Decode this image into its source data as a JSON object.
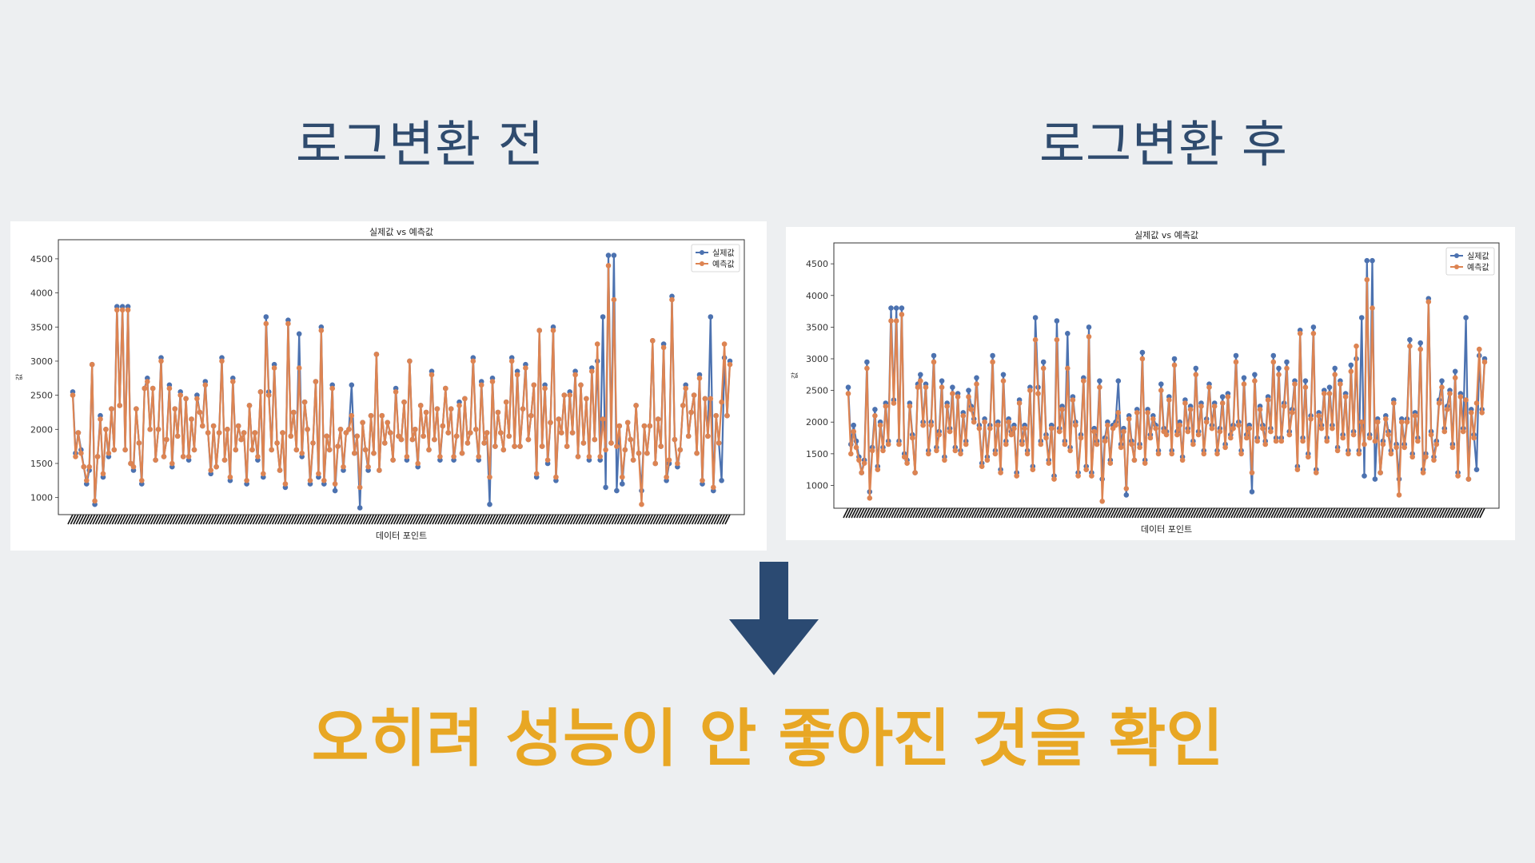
{
  "headings": {
    "before": "로그변환 전",
    "after": "로그변환 후"
  },
  "conclusion": "오히려 성능이 안 좋아진 것을 확인",
  "colors": {
    "background": "#edeff1",
    "heading": "#2f4b6e",
    "arrow": "#2b4a72",
    "conclusion": "#e8a724",
    "actual_series": "#4c72b0",
    "predicted_series": "#dd8452"
  },
  "icons": {
    "arrow": "arrow-down-icon"
  },
  "chart_data": [
    {
      "type": "line",
      "title": "실제값 vs 예측값",
      "xlabel": "데이터 포인트",
      "ylabel": "값",
      "yticks": [
        1000,
        1500,
        2000,
        2500,
        3000,
        3500,
        4000,
        4500
      ],
      "ylim": [
        750,
        4780
      ],
      "legend_position": "top-right",
      "grid": false,
      "x_tick_labels_illegible": true,
      "series": [
        {
          "name": "실제값",
          "marker": "circle",
          "values": [
            2550,
            1650,
            1950,
            1700,
            1450,
            1200,
            1400,
            2950,
            900,
            1600,
            2200,
            1300,
            2000,
            1600,
            2300,
            1700,
            3800,
            2350,
            3800,
            1700,
            3800,
            1500,
            1400,
            2300,
            1800,
            1200,
            2600,
            2750,
            2000,
            2600,
            1550,
            2000,
            3050,
            1600,
            1850,
            2650,
            1450,
            2300,
            1900,
            2550,
            1600,
            2450,
            1550,
            2150,
            1700,
            2500,
            2250,
            2050,
            2700,
            1950,
            1350,
            2050,
            1450,
            1950,
            3050,
            1550,
            2000,
            1250,
            2750,
            1700,
            2050,
            1850,
            1950,
            1200,
            2350,
            1700,
            1950,
            1550,
            2550,
            1300,
            3650,
            2550,
            1700,
            2950,
            1800,
            1400,
            1950,
            1150,
            3600,
            1900,
            2250,
            1700,
            3400,
            1600,
            2400,
            2000,
            1200,
            1800,
            2700,
            1300,
            3500,
            1200,
            1900,
            1700,
            2650,
            1100,
            1750,
            2000,
            1400,
            1950,
            2000,
            2650,
            1650,
            1900,
            850,
            2100,
            1700,
            1400,
            2200,
            1650,
            3100,
            1400,
            2200,
            1800,
            2100,
            1950,
            1550,
            2600,
            1900,
            1850,
            2400,
            1550,
            3000,
            1850,
            2000,
            1450,
            2350,
            1900,
            2250,
            1700,
            2850,
            1850,
            2300,
            1550,
            2050,
            2600,
            1950,
            2300,
            1550,
            1900,
            2400,
            1650,
            2450,
            1800,
            1950,
            3050,
            2000,
            1550,
            2700,
            1800,
            1950,
            900,
            2750,
            1750,
            2250,
            1950,
            1700,
            2400,
            1900,
            3050,
            1750,
            2850,
            1750,
            2300,
            2950,
            1850,
            2200,
            2650,
            1300,
            3450,
            1750,
            2650,
            1500,
            2100,
            3500,
            1250,
            2150,
            1950,
            2500,
            1750,
            2550,
            1950,
            2850,
            1600,
            2650,
            1800,
            2450,
            1550,
            2900,
            1850,
            3000,
            1550,
            3650,
            1150,
            4550,
            1800,
            4550,
            1100,
            2050,
            1200,
            1700,
            2100,
            1850,
            1550,
            2350,
            1650,
            1100,
            2050,
            1650,
            2050,
            3300,
            1500,
            2150,
            1750,
            3250,
            1250,
            1500,
            3950,
            1850,
            1450,
            1700,
            2350,
            2650,
            1900,
            2250,
            2500,
            1650,
            2800,
            1200,
            2450,
            1900,
            3650,
            1100,
            2200,
            1800,
            1250,
            3050,
            2200,
            3000
          ]
        },
        {
          "name": "예측값",
          "marker": "circle",
          "values": [
            2500,
            1600,
            1950,
            1650,
            1450,
            1250,
            1450,
            2950,
            950,
            1600,
            2150,
            1350,
            2000,
            1650,
            2300,
            1700,
            3750,
            2350,
            3750,
            1700,
            3750,
            1500,
            1450,
            2300,
            1800,
            1250,
            2600,
            2700,
            2000,
            2600,
            1550,
            2000,
            3000,
            1600,
            1850,
            2600,
            1500,
            2300,
            1900,
            2500,
            1600,
            2450,
            1600,
            2150,
            1700,
            2450,
            2250,
            2050,
            2650,
            1950,
            1400,
            2050,
            1450,
            1950,
            3000,
            1550,
            2000,
            1300,
            2700,
            1700,
            2050,
            1850,
            1950,
            1250,
            2350,
            1700,
            1950,
            1600,
            2550,
            1350,
            3550,
            2500,
            1700,
            2900,
            1800,
            1400,
            1950,
            1200,
            3550,
            1900,
            2250,
            1700,
            2900,
            1650,
            2400,
            2000,
            1250,
            1800,
            2700,
            1350,
            3450,
            1250,
            1900,
            1700,
            2600,
            1200,
            1750,
            2000,
            1450,
            1950,
            2000,
            2200,
            1650,
            1900,
            1150,
            2100,
            1700,
            1450,
            2200,
            1650,
            3100,
            1400,
            2200,
            1800,
            2100,
            1950,
            1550,
            2550,
            1900,
            1850,
            2400,
            1600,
            3000,
            1850,
            2000,
            1500,
            2350,
            1900,
            2250,
            1700,
            2800,
            1850,
            2300,
            1600,
            2050,
            2600,
            1950,
            2300,
            1600,
            1900,
            2350,
            1650,
            2450,
            1800,
            1950,
            3000,
            2000,
            1600,
            2650,
            1800,
            1950,
            1300,
            2700,
            1750,
            2250,
            1950,
            1700,
            2400,
            1900,
            3000,
            1750,
            2800,
            1750,
            2300,
            2900,
            1850,
            2200,
            2650,
            1350,
            3450,
            1750,
            2600,
            1550,
            2100,
            3450,
            1300,
            2150,
            1950,
            2500,
            1750,
            2500,
            1950,
            2800,
            1600,
            2650,
            1800,
            2450,
            1600,
            2850,
            1850,
            3250,
            1600,
            2150,
            1700,
            4400,
            1800,
            3900,
            1750,
            2050,
            1300,
            1700,
            2100,
            1850,
            1550,
            2350,
            1650,
            900,
            2050,
            1650,
            2050,
            3300,
            1500,
            2150,
            1750,
            3200,
            1300,
            1550,
            3900,
            1850,
            1500,
            1700,
            2350,
            2600,
            1900,
            2250,
            2500,
            1650,
            2750,
            1250,
            2450,
            1900,
            2450,
            1150,
            2200,
            1800,
            2400,
            3250,
            2200,
            2950
          ]
        }
      ]
    },
    {
      "type": "line",
      "title": "실제값 vs 예측값",
      "xlabel": "데이터 포인트",
      "ylabel": "값",
      "yticks": [
        1000,
        1500,
        2000,
        2500,
        3000,
        3500,
        4000,
        4500
      ],
      "ylim": [
        640,
        4830
      ],
      "legend_position": "top-right",
      "grid": false,
      "x_tick_labels_illegible": true,
      "series": [
        {
          "name": "실제값",
          "marker": "circle",
          "values": [
            2550,
            1650,
            1950,
            1700,
            1450,
            1200,
            1400,
            2950,
            900,
            1600,
            2200,
            1300,
            2000,
            1600,
            2300,
            1700,
            3800,
            2350,
            3800,
            1700,
            3800,
            1500,
            1400,
            2300,
            1800,
            1200,
            2600,
            2750,
            2000,
            2600,
            1550,
            2000,
            3050,
            1600,
            1850,
            2650,
            1450,
            2300,
            1900,
            2550,
            1600,
            2450,
            1550,
            2150,
            1700,
            2500,
            2250,
            2050,
            2700,
            1950,
            1350,
            2050,
            1450,
            1950,
            3050,
            1550,
            2000,
            1250,
            2750,
            1700,
            2050,
            1850,
            1950,
            1200,
            2350,
            1700,
            1950,
            1550,
            2550,
            1300,
            3650,
            2550,
            1700,
            2950,
            1800,
            1400,
            1950,
            1150,
            3600,
            1900,
            2250,
            1700,
            3400,
            1600,
            2400,
            2000,
            1200,
            1800,
            2700,
            1300,
            3500,
            1200,
            1900,
            1700,
            2650,
            1100,
            1750,
            2000,
            1400,
            1950,
            2000,
            2650,
            1650,
            1900,
            850,
            2100,
            1700,
            1400,
            2200,
            1650,
            3100,
            1400,
            2200,
            1800,
            2100,
            1950,
            1550,
            2600,
            1900,
            1850,
            2400,
            1550,
            3000,
            1850,
            2000,
            1450,
            2350,
            1900,
            2250,
            1700,
            2850,
            1850,
            2300,
            1550,
            2050,
            2600,
            1950,
            2300,
            1550,
            1900,
            2400,
            1650,
            2450,
            1800,
            1950,
            3050,
            2000,
            1550,
            2700,
            1800,
            1950,
            900,
            2750,
            1750,
            2250,
            1950,
            1700,
            2400,
            1900,
            3050,
            1750,
            2850,
            1750,
            2300,
            2950,
            1850,
            2200,
            2650,
            1300,
            3450,
            1750,
            2650,
            1500,
            2100,
            3500,
            1250,
            2150,
            1950,
            2500,
            1750,
            2550,
            1950,
            2850,
            1600,
            2650,
            1800,
            2450,
            1550,
            2900,
            1850,
            3000,
            1550,
            3650,
            1150,
            4550,
            1800,
            4550,
            1100,
            2050,
            1200,
            1700,
            2100,
            1850,
            1550,
            2350,
            1650,
            1100,
            2050,
            1650,
            2050,
            3300,
            1500,
            2150,
            1750,
            3250,
            1250,
            1500,
            3950,
            1850,
            1450,
            1700,
            2350,
            2650,
            1900,
            2250,
            2500,
            1650,
            2800,
            1200,
            2450,
            1900,
            3650,
            1100,
            2200,
            1800,
            1250,
            3050,
            2200,
            3000
          ]
        },
        {
          "name": "예측값",
          "marker": "circle",
          "values": [
            2450,
            1500,
            1850,
            1600,
            1400,
            1200,
            1350,
            2850,
            800,
            1550,
            2100,
            1250,
            1950,
            1550,
            2250,
            1650,
            3600,
            2300,
            3600,
            1650,
            3700,
            1450,
            1350,
            2250,
            1750,
            1200,
            2550,
            2650,
            1950,
            2550,
            1500,
            1950,
            2950,
            1550,
            1800,
            2550,
            1400,
            2250,
            1850,
            2450,
            1550,
            2400,
            1500,
            2100,
            1650,
            2400,
            2200,
            2000,
            2600,
            1900,
            1300,
            2000,
            1400,
            1900,
            2950,
            1500,
            1950,
            1200,
            2650,
            1650,
            2000,
            1800,
            1900,
            1150,
            2300,
            1650,
            1900,
            1500,
            2500,
            1250,
            3300,
            2450,
            1650,
            2850,
            1750,
            1350,
            1900,
            1100,
            3300,
            1850,
            2200,
            1650,
            2850,
            1550,
            2350,
            1950,
            1150,
            1750,
            2650,
            1250,
            3350,
            1150,
            1850,
            1650,
            2550,
            750,
            1700,
            1950,
            1350,
            1900,
            1950,
            2150,
            1600,
            1850,
            950,
            2050,
            1650,
            1400,
            2150,
            1600,
            3000,
            1350,
            2150,
            1750,
            2050,
            1900,
            1500,
            2500,
            1850,
            1800,
            2350,
            1500,
            2900,
            1800,
            1950,
            1400,
            2300,
            1850,
            2200,
            1650,
            2750,
            1800,
            2250,
            1500,
            2000,
            2550,
            1900,
            2250,
            1500,
            1850,
            2300,
            1600,
            2400,
            1750,
            1900,
            2950,
            1950,
            1500,
            2600,
            1750,
            1900,
            1200,
            2650,
            1700,
            2200,
            1900,
            1650,
            2350,
            1850,
            2950,
            1700,
            2750,
            1700,
            2250,
            2850,
            1800,
            2150,
            2600,
            1250,
            3400,
            1700,
            2550,
            1450,
            2050,
            3400,
            1200,
            2100,
            1900,
            2450,
            1700,
            2450,
            1900,
            2750,
            1550,
            2600,
            1750,
            2400,
            1500,
            2800,
            1800,
            3200,
            1500,
            2000,
            1650,
            4250,
            1750,
            3800,
            1700,
            2000,
            1200,
            1650,
            2050,
            1800,
            1500,
            2300,
            1600,
            850,
            2000,
            1600,
            2000,
            3200,
            1450,
            2100,
            1700,
            3150,
            1200,
            1450,
            3900,
            1800,
            1400,
            1650,
            2300,
            2550,
            1850,
            2200,
            2450,
            1600,
            2700,
            1150,
            2400,
            1850,
            2350,
            1100,
            2150,
            1750,
            2300,
            3150,
            2150,
            2950
          ]
        }
      ]
    }
  ]
}
